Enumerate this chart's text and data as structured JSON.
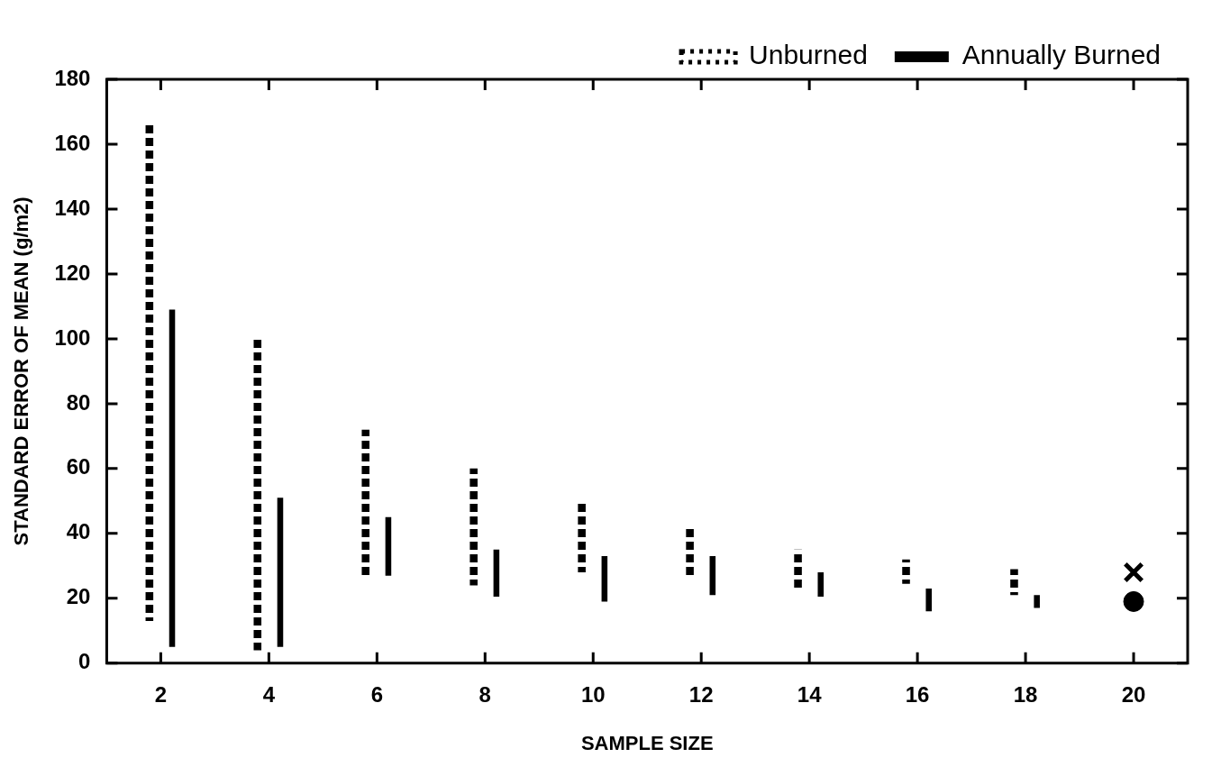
{
  "chart_data": {
    "type": "bar",
    "xlabel": "SAMPLE SIZE",
    "ylabel": "STANDARD ERROR OF MEAN (g/m2)",
    "categories": [
      "2",
      "4",
      "6",
      "8",
      "10",
      "12",
      "14",
      "16",
      "18",
      "20"
    ],
    "series": [
      {
        "name": "Unburned",
        "color": "#000000",
        "line_style": "dotted",
        "base": [
          13,
          4,
          26,
          24,
          28,
          26,
          23,
          24.5,
          21,
          null
        ],
        "values": [
          154,
          96,
          46,
          36,
          22,
          16,
          12,
          7.5,
          8,
          null
        ]
      },
      {
        "name": "Annually Burned",
        "color": "#000000",
        "line_style": "solid",
        "base": [
          5,
          5,
          27,
          20.5,
          19,
          21,
          20.5,
          16,
          17,
          null
        ],
        "values": [
          104,
          46,
          18,
          14.5,
          14,
          12,
          7.5,
          7,
          4,
          null
        ]
      },
      {
        "type": "scatter",
        "x": [
          "20"
        ],
        "values": [
          28
        ],
        "marker": "cross",
        "color": "#000000"
      },
      {
        "type": "scatter",
        "x": [
          "20"
        ],
        "values": [
          19
        ],
        "marker": "circle",
        "color": "#000000"
      }
    ],
    "ylim": [
      0,
      180
    ],
    "yticks": [
      0,
      20,
      40,
      60,
      80,
      100,
      120,
      140,
      160,
      180
    ],
    "legend": "top right"
  }
}
